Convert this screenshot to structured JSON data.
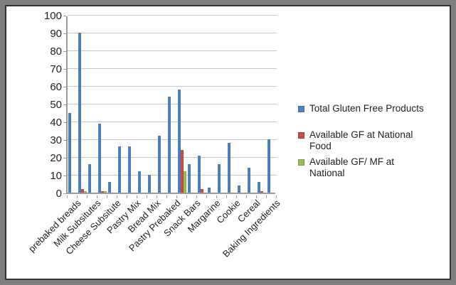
{
  "chart_data": {
    "type": "bar",
    "title": "",
    "categories": [
      "prebaked breads",
      "",
      "Milk Subsitutes",
      "",
      "Cheese Subsitute",
      "",
      "Pastry Mix",
      "",
      "Bread Mix",
      "",
      "Pastry Prebaked",
      "",
      "Snack Bars",
      "",
      "Margarine",
      "",
      "Cookie",
      "",
      "Cereal",
      "",
      "Baking Ingredients"
    ],
    "series": [
      {
        "name": "Total Gluten Free Products",
        "color": "#4f81bd",
        "edge_color": "#3d6da3",
        "values": [
          45,
          90,
          16,
          39,
          6,
          26,
          26,
          12,
          10,
          32,
          54,
          58,
          16,
          21,
          3,
          16,
          28,
          4,
          14,
          6,
          30
        ]
      },
      {
        "name": "Available GF at  National Food",
        "color": "#c0504d",
        "edge_color": "#9c3d3b",
        "values": [
          0,
          2,
          0,
          1,
          0,
          0,
          0,
          0,
          0,
          0,
          0,
          24,
          0,
          2,
          0,
          0,
          0,
          0,
          0,
          1,
          0
        ]
      },
      {
        "name": "Available GF/ MF at National",
        "color": "#9bbb59",
        "edge_color": "#7d9a44",
        "values": [
          0,
          1,
          0,
          1,
          0,
          0,
          0,
          0,
          0,
          0,
          0,
          12,
          0,
          0,
          0,
          0,
          0,
          0,
          0,
          0,
          0
        ]
      }
    ],
    "legend": {
      "position": "right",
      "items": [
        {
          "lines": [
            "Total Gluten Free Products"
          ]
        },
        {
          "lines": [
            "Available GF at  National",
            "Food"
          ]
        },
        {
          "lines": [
            "Available GF/ MF at",
            "National"
          ]
        }
      ]
    },
    "ylim": [
      0,
      100
    ],
    "yticks": [
      0,
      10,
      20,
      30,
      40,
      50,
      60,
      70,
      80,
      90,
      100
    ],
    "grid": true,
    "colors": {
      "grid": "#c6c6c6",
      "axis": "#9c9c9c",
      "text": "#1f1f1f",
      "frame": "#7f7f7f",
      "frame_border": "#333333",
      "background": "#ffffff"
    }
  }
}
